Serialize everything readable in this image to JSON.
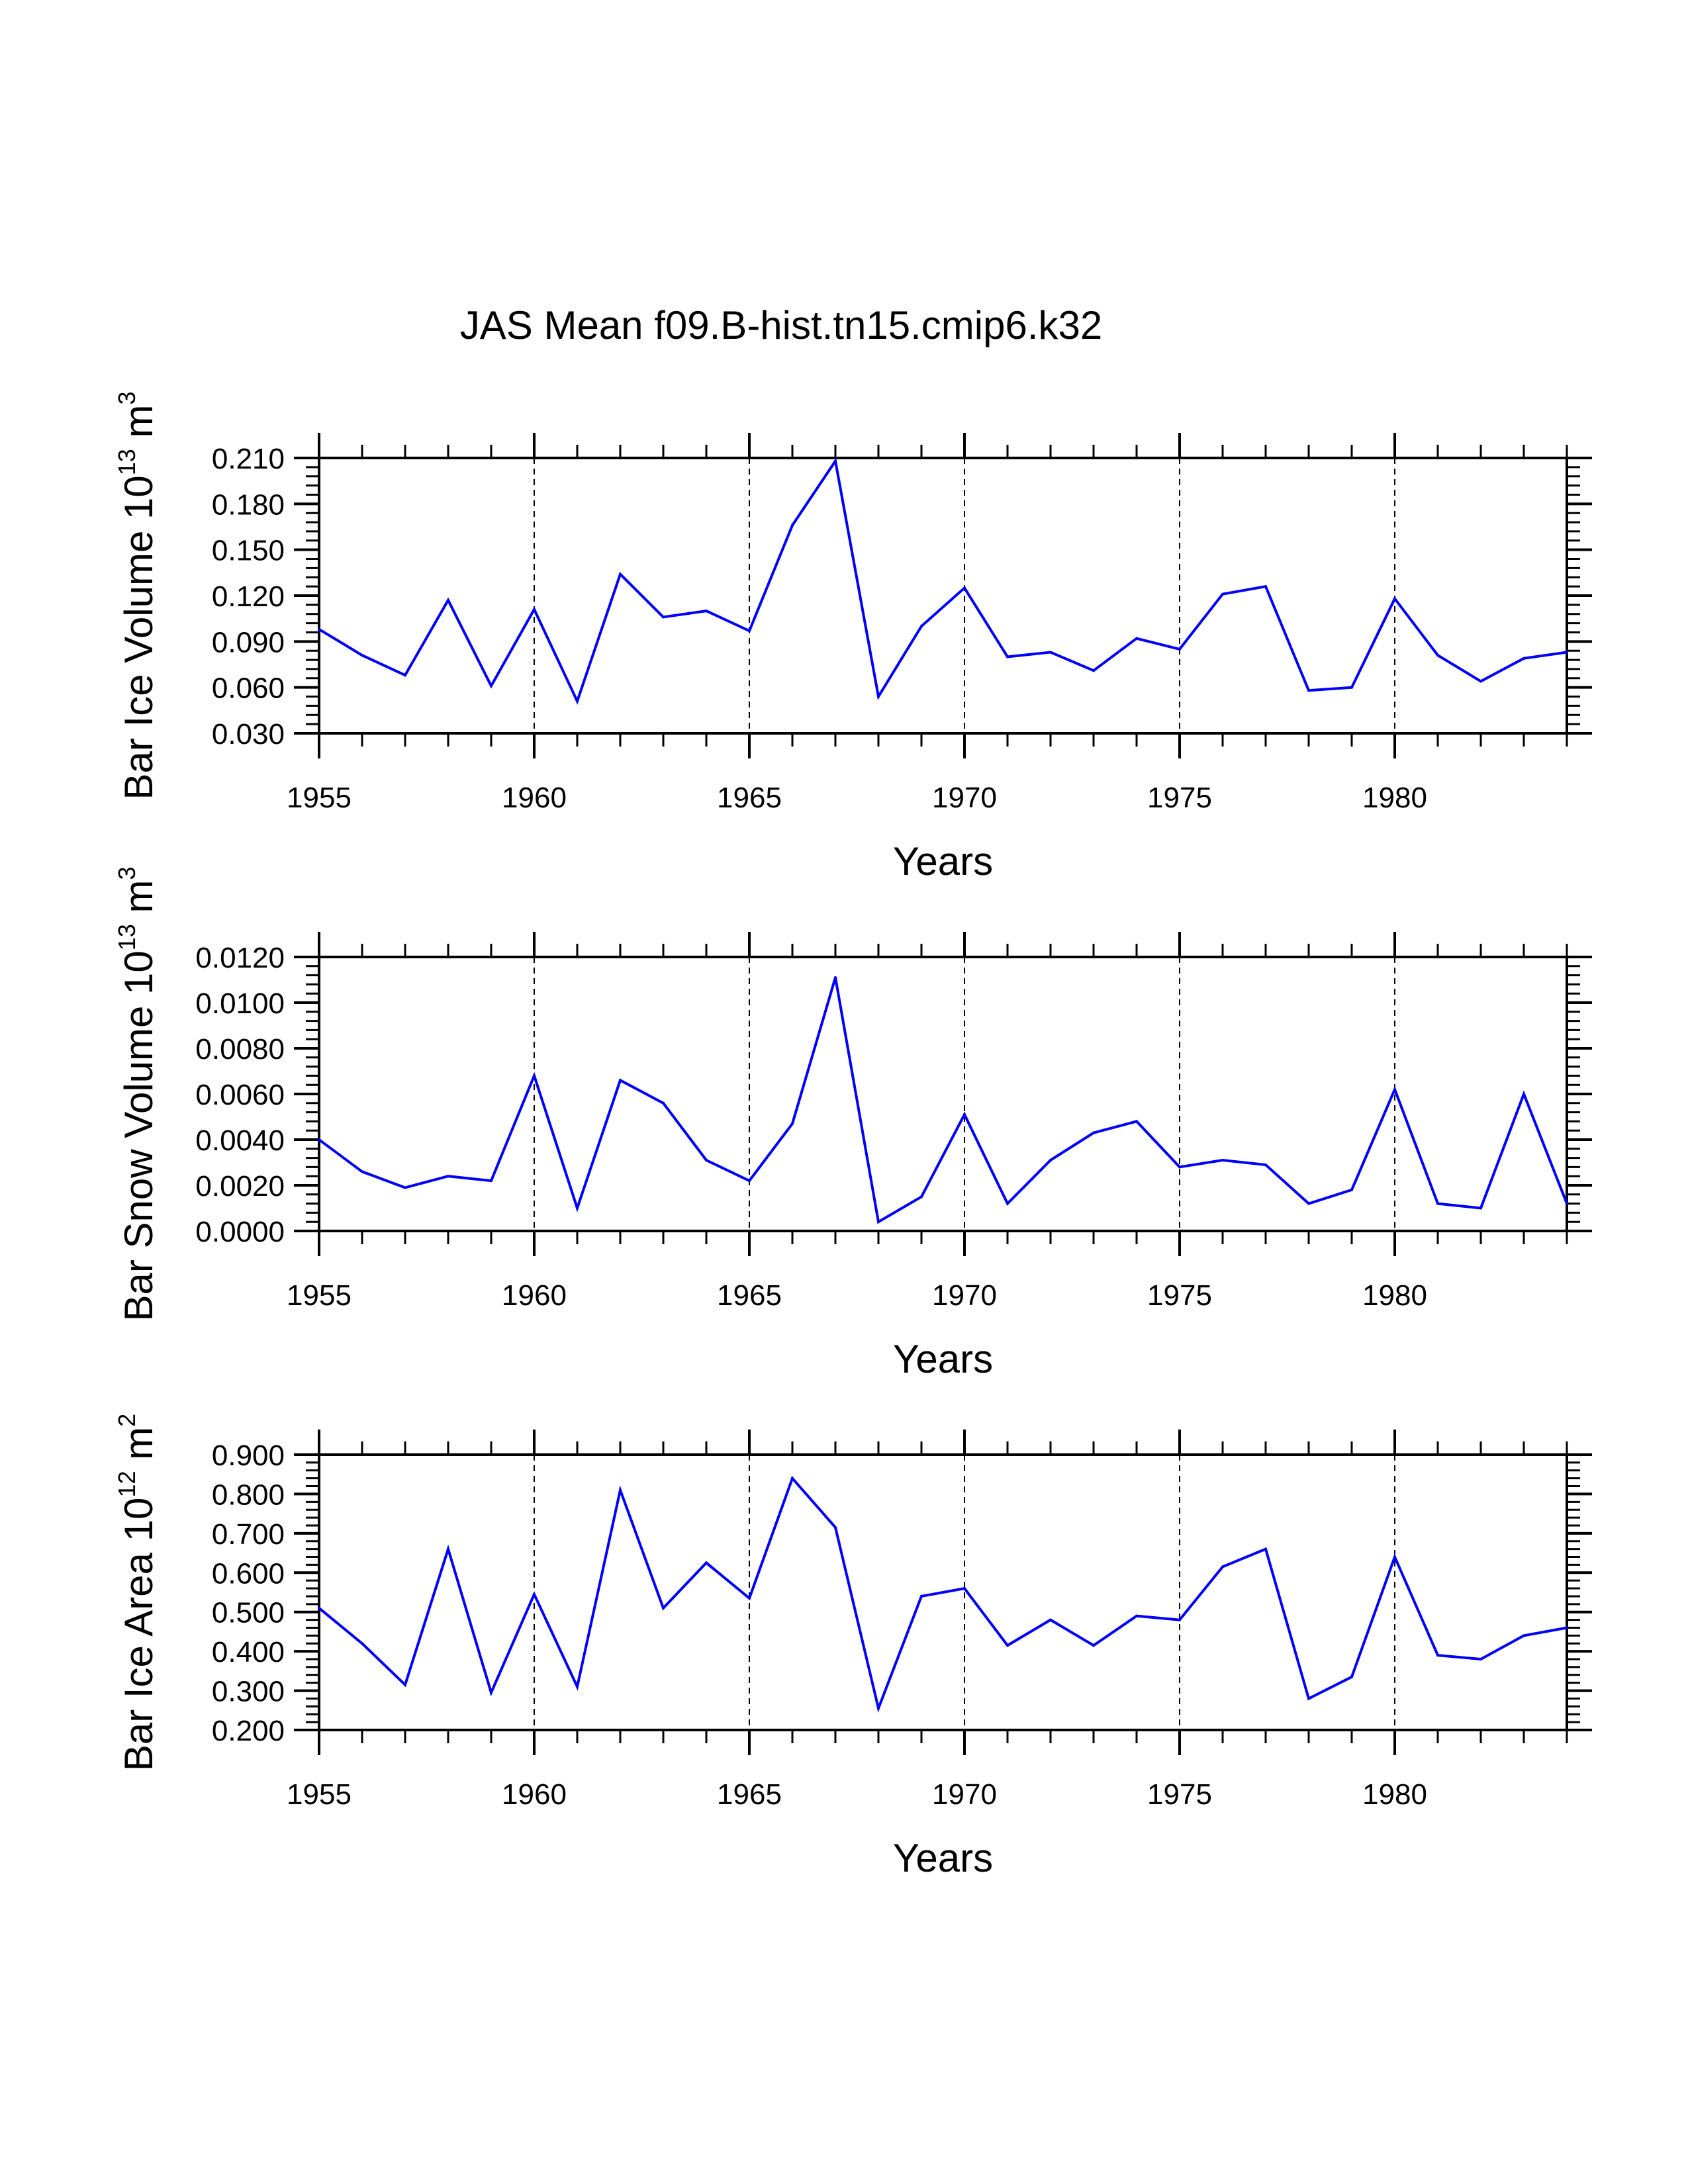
{
  "title": "JAS Mean f09.B-hist.tn15.cmip6.k32",
  "colors": {
    "line": "#0000ff",
    "axis": "#000000",
    "grid": "#000000",
    "background": "#ffffff"
  },
  "chart_data": [
    {
      "type": "line",
      "title": "JAS Mean f09.B-hist.tn15.cmip6.k32",
      "xlabel": "Years",
      "ylabel_text": "Bar Ice Volume 10",
      "ylabel_exp": "13",
      "ylabel_unit": " m",
      "ylabel_unit_exp": "3",
      "xlim": [
        1955,
        1984
      ],
      "ylim": [
        0.03,
        0.21
      ],
      "yticks": [
        0.03,
        0.06,
        0.09,
        0.12,
        0.15,
        0.18,
        0.21
      ],
      "ytick_labels": [
        "0.030",
        "0.060",
        "0.090",
        "0.120",
        "0.150",
        "0.180",
        "0.210"
      ],
      "yminor_step": 0.006,
      "xticks": [
        1955,
        1960,
        1965,
        1970,
        1975,
        1980
      ],
      "xtick_labels": [
        "1955",
        "1960",
        "1965",
        "1970",
        "1975",
        "1980"
      ],
      "grid_x": [
        1960,
        1965,
        1970,
        1975,
        1980
      ],
      "series": [
        {
          "name": "Bar Ice Volume",
          "x": [
            1955,
            1956,
            1957,
            1958,
            1959,
            1960,
            1961,
            1962,
            1963,
            1964,
            1965,
            1966,
            1967,
            1968,
            1969,
            1970,
            1971,
            1972,
            1973,
            1974,
            1975,
            1976,
            1977,
            1978,
            1979,
            1980,
            1981,
            1982,
            1983,
            1984
          ],
          "values": [
            0.098,
            0.081,
            0.068,
            0.117,
            0.061,
            0.111,
            0.051,
            0.134,
            0.106,
            0.11,
            0.097,
            0.166,
            0.208,
            0.054,
            0.1,
            0.125,
            0.08,
            0.083,
            0.071,
            0.092,
            0.085,
            0.121,
            0.126,
            0.058,
            0.06,
            0.118,
            0.081,
            0.064,
            0.079,
            0.083
          ]
        }
      ]
    },
    {
      "type": "line",
      "xlabel": "Years",
      "ylabel_text": "Bar Snow Volume 10",
      "ylabel_exp": "13",
      "ylabel_unit": " m",
      "ylabel_unit_exp": "3",
      "xlim": [
        1955,
        1984
      ],
      "ylim": [
        0.0,
        0.012
      ],
      "yticks": [
        0.0,
        0.002,
        0.004,
        0.006,
        0.008,
        0.01,
        0.012
      ],
      "ytick_labels": [
        "0.0000",
        "0.0020",
        "0.0040",
        "0.0060",
        "0.0080",
        "0.0100",
        "0.0120"
      ],
      "yminor_step": 0.0004,
      "xticks": [
        1955,
        1960,
        1965,
        1970,
        1975,
        1980
      ],
      "xtick_labels": [
        "1955",
        "1960",
        "1965",
        "1970",
        "1975",
        "1980"
      ],
      "grid_x": [
        1960,
        1965,
        1970,
        1975,
        1980
      ],
      "series": [
        {
          "name": "Bar Snow Volume",
          "x": [
            1955,
            1956,
            1957,
            1958,
            1959,
            1960,
            1961,
            1962,
            1963,
            1964,
            1965,
            1966,
            1967,
            1968,
            1969,
            1970,
            1971,
            1972,
            1973,
            1974,
            1975,
            1976,
            1977,
            1978,
            1979,
            1980,
            1981,
            1982,
            1983,
            1984
          ],
          "values": [
            0.004,
            0.0026,
            0.0019,
            0.0024,
            0.0022,
            0.0068,
            0.001,
            0.0066,
            0.0056,
            0.0031,
            0.0022,
            0.0047,
            0.0111,
            0.0004,
            0.0015,
            0.0051,
            0.0012,
            0.0031,
            0.0043,
            0.0048,
            0.0028,
            0.0031,
            0.0029,
            0.0012,
            0.0018,
            0.0062,
            0.0012,
            0.001,
            0.006,
            0.0012
          ]
        }
      ]
    },
    {
      "type": "line",
      "xlabel": "Years",
      "ylabel_text": "Bar Ice Area 10",
      "ylabel_exp": "12",
      "ylabel_unit": " m",
      "ylabel_unit_exp": "2",
      "xlim": [
        1955,
        1984
      ],
      "ylim": [
        0.2,
        0.9
      ],
      "yticks": [
        0.2,
        0.3,
        0.4,
        0.5,
        0.6,
        0.7,
        0.8,
        0.9
      ],
      "ytick_labels": [
        "0.200",
        "0.300",
        "0.400",
        "0.500",
        "0.600",
        "0.700",
        "0.800",
        "0.900"
      ],
      "yminor_step": 0.02,
      "xticks": [
        1955,
        1960,
        1965,
        1970,
        1975,
        1980
      ],
      "xtick_labels": [
        "1955",
        "1960",
        "1965",
        "1970",
        "1975",
        "1980"
      ],
      "grid_x": [
        1960,
        1965,
        1970,
        1975,
        1980
      ],
      "series": [
        {
          "name": "Bar Ice Area",
          "x": [
            1955,
            1956,
            1957,
            1958,
            1959,
            1960,
            1961,
            1962,
            1963,
            1964,
            1965,
            1966,
            1967,
            1968,
            1969,
            1970,
            1971,
            1972,
            1973,
            1974,
            1975,
            1976,
            1977,
            1978,
            1979,
            1980,
            1981,
            1982,
            1983,
            1984
          ],
          "values": [
            0.51,
            0.42,
            0.315,
            0.66,
            0.295,
            0.545,
            0.31,
            0.81,
            0.51,
            0.625,
            0.535,
            0.84,
            0.715,
            0.255,
            0.54,
            0.56,
            0.415,
            0.48,
            0.415,
            0.49,
            0.48,
            0.615,
            0.66,
            0.28,
            0.335,
            0.64,
            0.39,
            0.38,
            0.44,
            0.46
          ]
        }
      ]
    }
  ]
}
